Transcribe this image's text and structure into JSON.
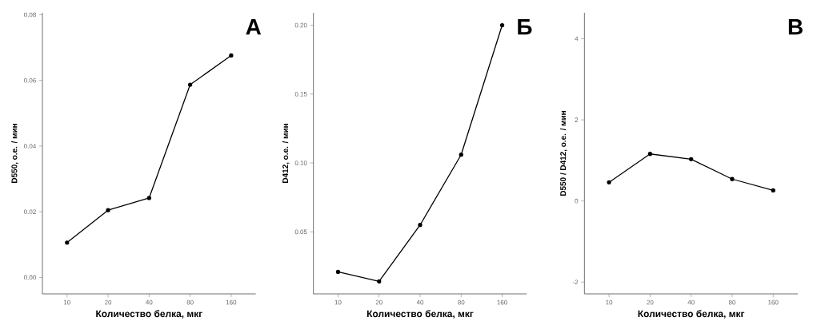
{
  "chart_data": [
    {
      "type": "line",
      "title": "А",
      "xlabel": "Количество белка, мкг",
      "ylabel": "D550, о.е. /  мин",
      "categories": [
        "10",
        "20",
        "40",
        "80",
        "160"
      ],
      "series": [
        {
          "color": "#000000",
          "values": [
            0.0106,
            0.0205,
            0.0242,
            0.0587,
            0.0676
          ]
        }
      ],
      "ylim": [
        -0.005,
        0.0806
      ],
      "yticks": [
        {
          "value": 0,
          "label": "0.00"
        },
        {
          "value": 0.02,
          "label": "0.02"
        },
        {
          "value": 0.04,
          "label": "0.04"
        },
        {
          "value": 0.06,
          "label": "0.06"
        },
        {
          "value": 0.08,
          "label": "0.08"
        }
      ],
      "marker": "circle",
      "grid": false
    },
    {
      "type": "line",
      "title": "Б",
      "xlabel": "Количество белка, мкг",
      "ylabel": "D412, о.е. /  мин",
      "categories": [
        "10",
        "20",
        "40",
        "80",
        "160"
      ],
      "series": [
        {
          "color": "#000000",
          "values": [
            0.021,
            0.014,
            0.055,
            0.106,
            0.2
          ]
        }
      ],
      "ylim": [
        0.005,
        0.209
      ],
      "yticks": [
        {
          "value": 0.05,
          "label": "0.05"
        },
        {
          "value": 0.1,
          "label": "0.10"
        },
        {
          "value": 0.15,
          "label": "0.15"
        },
        {
          "value": 0.2,
          "label": "0.20"
        }
      ],
      "marker": "circle",
      "grid": false
    },
    {
      "type": "line",
      "title": "В",
      "xlabel": "Количество белка, мкг",
      "ylabel": "D550 / D412, о.е. /  мин",
      "categories": [
        "10",
        "20",
        "40",
        "80",
        "160"
      ],
      "series": [
        {
          "color": "#000000",
          "values": [
            0.46,
            1.16,
            1.03,
            0.54,
            0.26
          ]
        }
      ],
      "ylim": [
        -2.29,
        4.64
      ],
      "yticks": [
        -2,
        0,
        2,
        4
      ],
      "marker": "circle",
      "grid": false
    }
  ]
}
